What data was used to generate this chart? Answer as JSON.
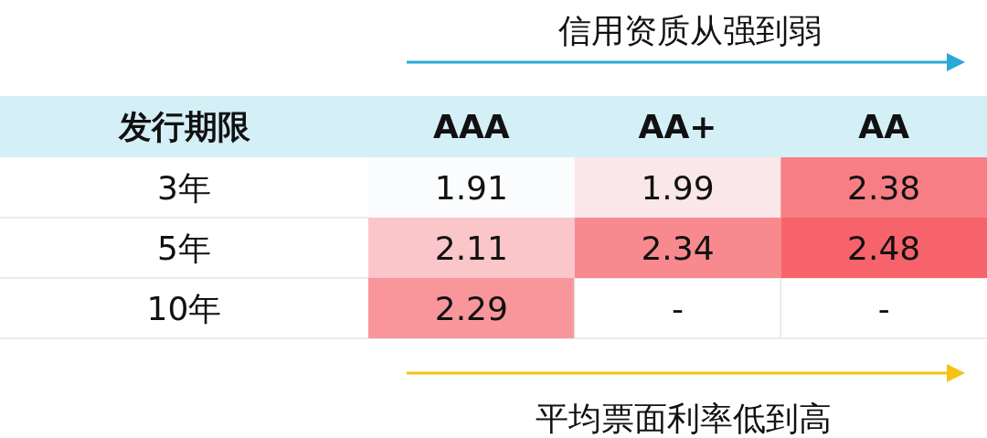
{
  "chart_data": {
    "type": "heatmap",
    "title": "信用资质从强到弱",
    "ylabel": "发行期限",
    "categories": [
      "AAA",
      "AA+",
      "AA"
    ],
    "y_categories": [
      "3年",
      "5年",
      "10年"
    ],
    "cells": [
      [
        1.91,
        1.99,
        2.38
      ],
      [
        2.11,
        2.34,
        2.48
      ],
      [
        2.29,
        null,
        null
      ]
    ],
    "cell_labels": [
      [
        "1.91",
        "1.99",
        "2.38"
      ],
      [
        "2.11",
        "2.34",
        "2.48"
      ],
      [
        "2.29",
        "-",
        "-"
      ]
    ],
    "annotations": [
      "平均票面利率低到高"
    ]
  }
}
